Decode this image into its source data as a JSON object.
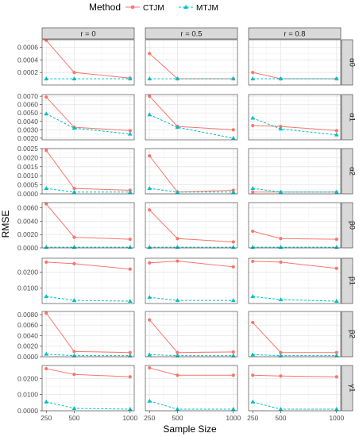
{
  "legend": {
    "title": "Method",
    "items": [
      {
        "label": "CTJM",
        "color": "#F8766D",
        "marker": "circle",
        "line": "solid"
      },
      {
        "label": "MTJM",
        "color": "#00BFC4",
        "marker": "triangle",
        "line": "dashed"
      }
    ]
  },
  "chart_data": {
    "type": "line",
    "xlabel": "Sample Size",
    "ylabel": "RMSE",
    "x": [
      250,
      500,
      1000
    ],
    "x_tick_labels": [
      "250",
      "500",
      "1000"
    ],
    "x_range": [
      250,
      1000
    ],
    "facet_columns": [
      "r = 0",
      "r = 0.5",
      "r = 0.8"
    ],
    "facet_rows": [
      {
        "label": "α0",
        "ylim": [
          0,
          0.00072
        ],
        "y_ticks": [
          0.0002,
          0.0004,
          0.0006
        ],
        "y_tick_labels": [
          "0.0002",
          "0.0004",
          "0.0006"
        ],
        "panels": [
          {
            "CTJM": [
              0.00071,
              0.0002,
              0.00011
            ],
            "MTJM": [
              0.0001,
              0.0001,
              0.0001
            ]
          },
          {
            "CTJM": [
              0.0005,
              0.0001,
              0.0001
            ],
            "MTJM": [
              0.0001,
              0.0001,
              0.0001
            ]
          },
          {
            "CTJM": [
              0.0002,
              0.0001,
              0.0001
            ],
            "MTJM": [
              0.0001,
              0.0001,
              0.0001
            ]
          }
        ]
      },
      {
        "label": "α1",
        "ylim": [
          0.0018,
          0.0072
        ],
        "y_ticks": [
          0.002,
          0.003,
          0.004,
          0.005,
          0.006,
          0.007
        ],
        "y_tick_labels": [
          "0.0020",
          "0.0030",
          "0.0040",
          "0.0050",
          "0.0060",
          "0.0070"
        ],
        "panels": [
          {
            "CTJM": [
              0.0069,
              0.0033,
              0.0029
            ],
            "MTJM": [
              0.0049,
              0.0032,
              0.0025
            ]
          },
          {
            "CTJM": [
              0.007,
              0.0034,
              0.003
            ],
            "MTJM": [
              0.0048,
              0.0033,
              0.002
            ]
          },
          {
            "CTJM": [
              0.0035,
              0.0034,
              0.0029
            ],
            "MTJM": [
              0.0044,
              0.0031,
              0.0024
            ]
          }
        ]
      },
      {
        "label": "α2",
        "ylim": [
          0,
          0.0025
        ],
        "y_ticks": [
          0,
          0.0005,
          0.001,
          0.0015,
          0.002,
          0.0025
        ],
        "y_tick_labels": [
          "0.0000",
          "0.0005",
          "0.0010",
          "0.0015",
          "0.0020",
          "0.0025"
        ],
        "panels": [
          {
            "CTJM": [
              0.0024,
              0.0003,
              0.0002
            ],
            "MTJM": [
              0.0003,
              0.0001,
              0.0001
            ]
          },
          {
            "CTJM": [
              0.0021,
              0.0001,
              0.0002
            ],
            "MTJM": [
              0.0003,
              0.0001,
              0.0001
            ]
          },
          {
            "CTJM": [
              0.0001,
              0.0001,
              0.0001
            ],
            "MTJM": [
              0.0003,
              0.0001,
              0.0001
            ]
          }
        ]
      },
      {
        "label": "β0",
        "ylim": [
          0,
          0.0068
        ],
        "y_ticks": [
          0,
          0.002,
          0.004,
          0.006
        ],
        "y_tick_labels": [
          "0.0000",
          "0.0020",
          "0.0040",
          "0.0060"
        ],
        "panels": [
          {
            "CTJM": [
              0.0066,
              0.0016,
              0.0013
            ],
            "MTJM": [
              0.0001,
              0.0001,
              0.0001
            ]
          },
          {
            "CTJM": [
              0.0057,
              0.0014,
              0.0009
            ],
            "MTJM": [
              0.0001,
              0.0001,
              0.0001
            ]
          },
          {
            "CTJM": [
              0.0025,
              0.0014,
              0.0013
            ],
            "MTJM": [
              0.0001,
              0.0001,
              0.0001
            ]
          }
        ]
      },
      {
        "label": "β1",
        "ylim": [
          0,
          0.029
        ],
        "y_ticks": [
          0.01,
          0.02
        ],
        "y_tick_labels": [
          "0.0100",
          "0.0200"
        ],
        "panels": [
          {
            "CTJM": [
              0.0265,
              0.0255,
              0.022
            ],
            "MTJM": [
              0.0045,
              0.002,
              0.0015
            ]
          },
          {
            "CTJM": [
              0.026,
              0.0272,
              0.0235
            ],
            "MTJM": [
              0.004,
              0.002,
              0.002
            ]
          },
          {
            "CTJM": [
              0.027,
              0.0265,
              0.0225
            ],
            "MTJM": [
              0.0045,
              0.0025,
              0.0015
            ]
          }
        ]
      },
      {
        "label": "β2",
        "ylim": [
          0,
          0.0086
        ],
        "y_ticks": [
          0,
          0.002,
          0.004,
          0.006,
          0.008
        ],
        "y_tick_labels": [
          "0.0000",
          "0.0020",
          "0.0040",
          "0.0060",
          "0.0080"
        ],
        "panels": [
          {
            "CTJM": [
              0.0083,
              0.001,
              0.0008
            ],
            "MTJM": [
              0.0005,
              0.0002,
              0.0002
            ]
          },
          {
            "CTJM": [
              0.007,
              0.0008,
              0.0009
            ],
            "MTJM": [
              0.0004,
              0.0002,
              0.0002
            ]
          },
          {
            "CTJM": [
              0.0065,
              0.0008,
              0.0008
            ],
            "MTJM": [
              0.0004,
              0.0002,
              0.0002
            ]
          }
        ]
      },
      {
        "label": "γ1",
        "ylim": [
          0,
          0.028
        ],
        "y_ticks": [
          0,
          0.01,
          0.02
        ],
        "y_tick_labels": [
          "0.0000",
          "0.0100",
          "0.0200"
        ],
        "panels": [
          {
            "CTJM": [
              0.026,
              0.0225,
              0.021
            ],
            "MTJM": [
              0.0055,
              0.0015,
              0.001
            ]
          },
          {
            "CTJM": [
              0.0265,
              0.022,
              0.022
            ],
            "MTJM": [
              0.006,
              0.001,
              0.001
            ]
          },
          {
            "CTJM": [
              0.022,
              0.0215,
              0.021
            ],
            "MTJM": [
              0.0055,
              0.001,
              0.001
            ]
          }
        ]
      }
    ]
  }
}
